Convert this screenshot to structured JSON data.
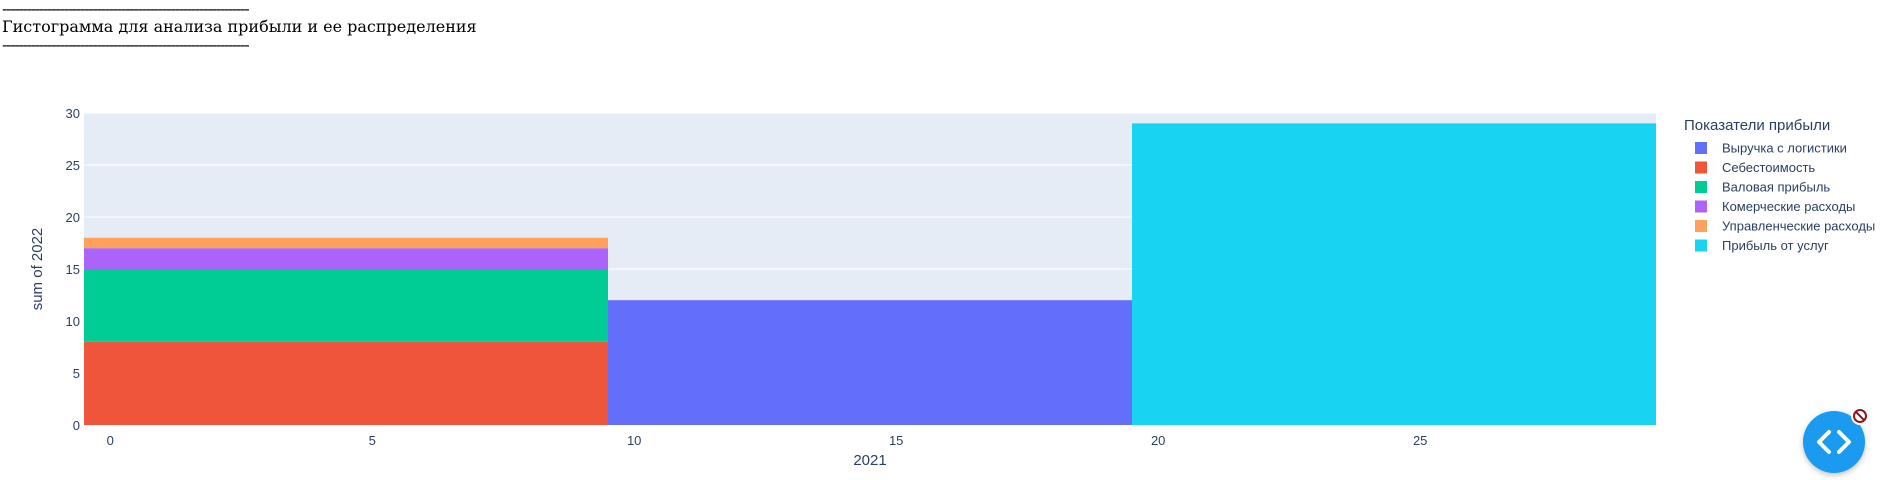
{
  "page": {
    "rule_top": "------------------------------------------------------------",
    "heading": "Гистограмма для анализа прибыли и ее распределения",
    "rule_bottom": "------------------------------------------------------------"
  },
  "chart_data": {
    "type": "bar",
    "barmode": "stack",
    "xlabel": "2021",
    "ylabel": "sum of 2022",
    "xlim": [
      -0.5,
      29.5
    ],
    "ylim": [
      0,
      30
    ],
    "x_ticks": [
      0,
      5,
      10,
      15,
      20,
      25
    ],
    "y_ticks": [
      0,
      5,
      10,
      15,
      20,
      25,
      30
    ],
    "bins": [
      {
        "x_start": -0.5,
        "x_end": 9.5
      },
      {
        "x_start": 9.5,
        "x_end": 19.5
      },
      {
        "x_start": 19.5,
        "x_end": 29.5
      }
    ],
    "legend_title": "Показатели прибыли",
    "legend_position": "right",
    "series": [
      {
        "name": "Выручка с логистики",
        "color": "#636efa",
        "values": [
          0,
          12,
          0
        ]
      },
      {
        "name": "Себестоимость",
        "color": "#EF553B",
        "values": [
          8,
          0,
          0
        ]
      },
      {
        "name": "Валовая прибыль",
        "color": "#00cc96",
        "values": [
          7,
          0,
          0
        ]
      },
      {
        "name": "Комерческие расходы",
        "color": "#ab63fa",
        "values": [
          2,
          0,
          0
        ]
      },
      {
        "name": "Управленческие расходы",
        "color": "#FFA15A",
        "values": [
          1,
          0,
          0
        ]
      },
      {
        "name": "Прибыль от услуг",
        "color": "#19d3f3",
        "values": [
          0,
          0,
          29
        ]
      }
    ],
    "grid": true,
    "plot_background": "#e5ecf6"
  }
}
